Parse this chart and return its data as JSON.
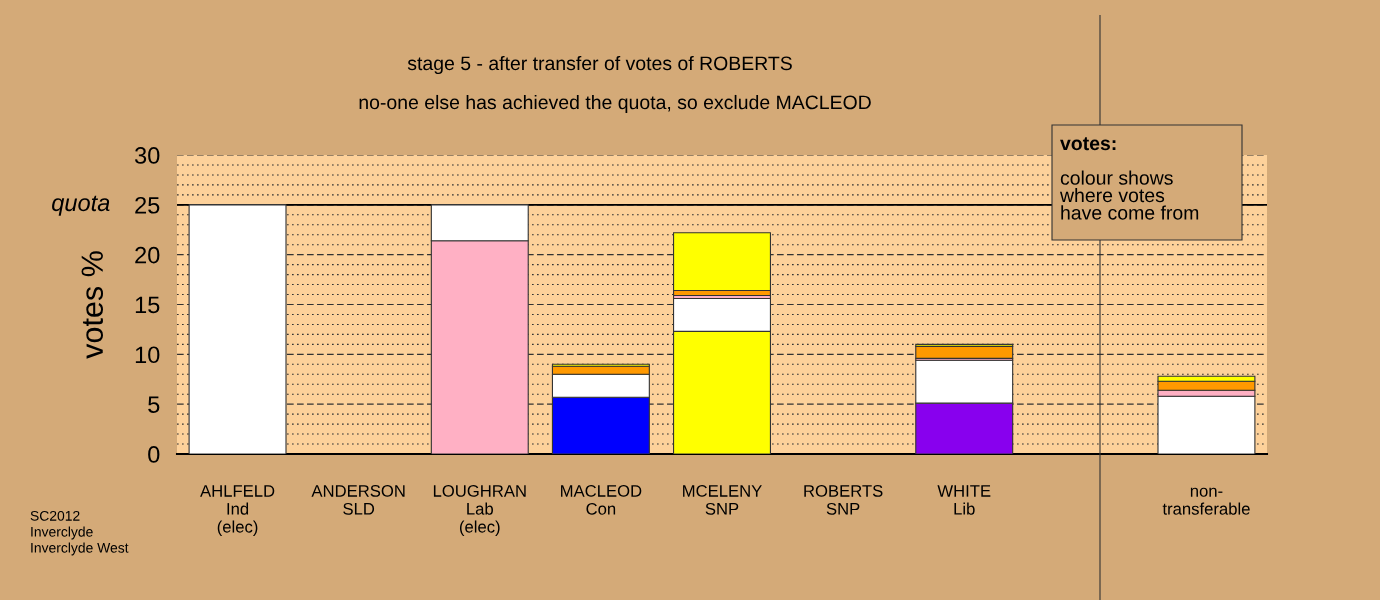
{
  "chart_data": {
    "type": "bar",
    "stacked": true,
    "title": "stage 5 - after transfer of votes of ROBERTS",
    "subtitle": "no-one else has achieved the quota, so exclude MACLEOD",
    "ylabel": "votes %",
    "categories": [
      "AHLFELD\nInd\n(elec)",
      "ANDERSON\nSLD",
      "LOUGHRAN\nLab\n(elec)",
      "MACLEOD\nCon",
      "MCELENY\nSNP",
      "ROBERTS\nSNP",
      "WHITE\nLib",
      null,
      "non-\ntransferable"
    ],
    "series": [
      {
        "colors": [
          "#ffffff",
          "#ffffff",
          "#ffb0c4",
          "#0000ff",
          "#ffff00",
          "#ffffff",
          "#8800ee",
          "#ffffff",
          "#ffffff"
        ],
        "values": [
          25,
          0,
          21.4,
          5.7,
          12.3,
          0,
          5.1,
          null,
          null
        ]
      },
      {
        "color": "#ffffff",
        "values": [
          null,
          null,
          3.6,
          2.3,
          3.3,
          null,
          4.3,
          null,
          5.8
        ]
      },
      {
        "color": "#ffb0c4",
        "values": [
          null,
          null,
          null,
          null,
          0.3,
          null,
          0.2,
          null,
          0.6
        ]
      },
      {
        "color": "#ff9900",
        "values": [
          null,
          null,
          null,
          0.8,
          0.5,
          null,
          1.2,
          null,
          0.9
        ]
      },
      {
        "color": "#ffff00",
        "values": [
          null,
          null,
          null,
          0.2,
          5.8,
          null,
          0.2,
          null,
          0.5
        ]
      }
    ],
    "ylim": [
      0,
      30
    ],
    "yticks": [
      0,
      {
        "value": 1,
        "label": null
      },
      {
        "value": 2,
        "label": null
      },
      {
        "value": 3,
        "label": null
      },
      {
        "value": 4,
        "label": null
      },
      5,
      {
        "value": 6,
        "label": null
      },
      {
        "value": 7,
        "label": null
      },
      {
        "value": 8,
        "label": null
      },
      {
        "value": 9,
        "label": null
      },
      10,
      {
        "value": 11,
        "label": null
      },
      {
        "value": 12,
        "label": null
      },
      {
        "value": 13,
        "label": null
      },
      {
        "value": 14,
        "label": null
      },
      15,
      {
        "value": 16,
        "label": null
      },
      {
        "value": 17,
        "label": null
      },
      {
        "value": 18,
        "label": null
      },
      {
        "value": 19,
        "label": null
      },
      20,
      {
        "value": 21,
        "label": null
      },
      {
        "value": 22,
        "label": null
      },
      {
        "value": 23,
        "label": null
      },
      {
        "value": 24,
        "label": null
      },
      25,
      {
        "value": 26,
        "label": null
      },
      {
        "value": 27,
        "label": null
      },
      {
        "value": 28,
        "label": null
      },
      {
        "value": 29,
        "label": null
      },
      30
    ],
    "ref_lines": [
      {
        "axis": "y",
        "value": 25,
        "label": "quota",
        "color": "#000000",
        "line_style": "solid"
      }
    ],
    "grid": "y",
    "annotations": [
      "votes:",
      "colour shows\nwhere votes\nhave come from",
      "SC2012\nInverclyde\nInverclyde West"
    ]
  }
}
